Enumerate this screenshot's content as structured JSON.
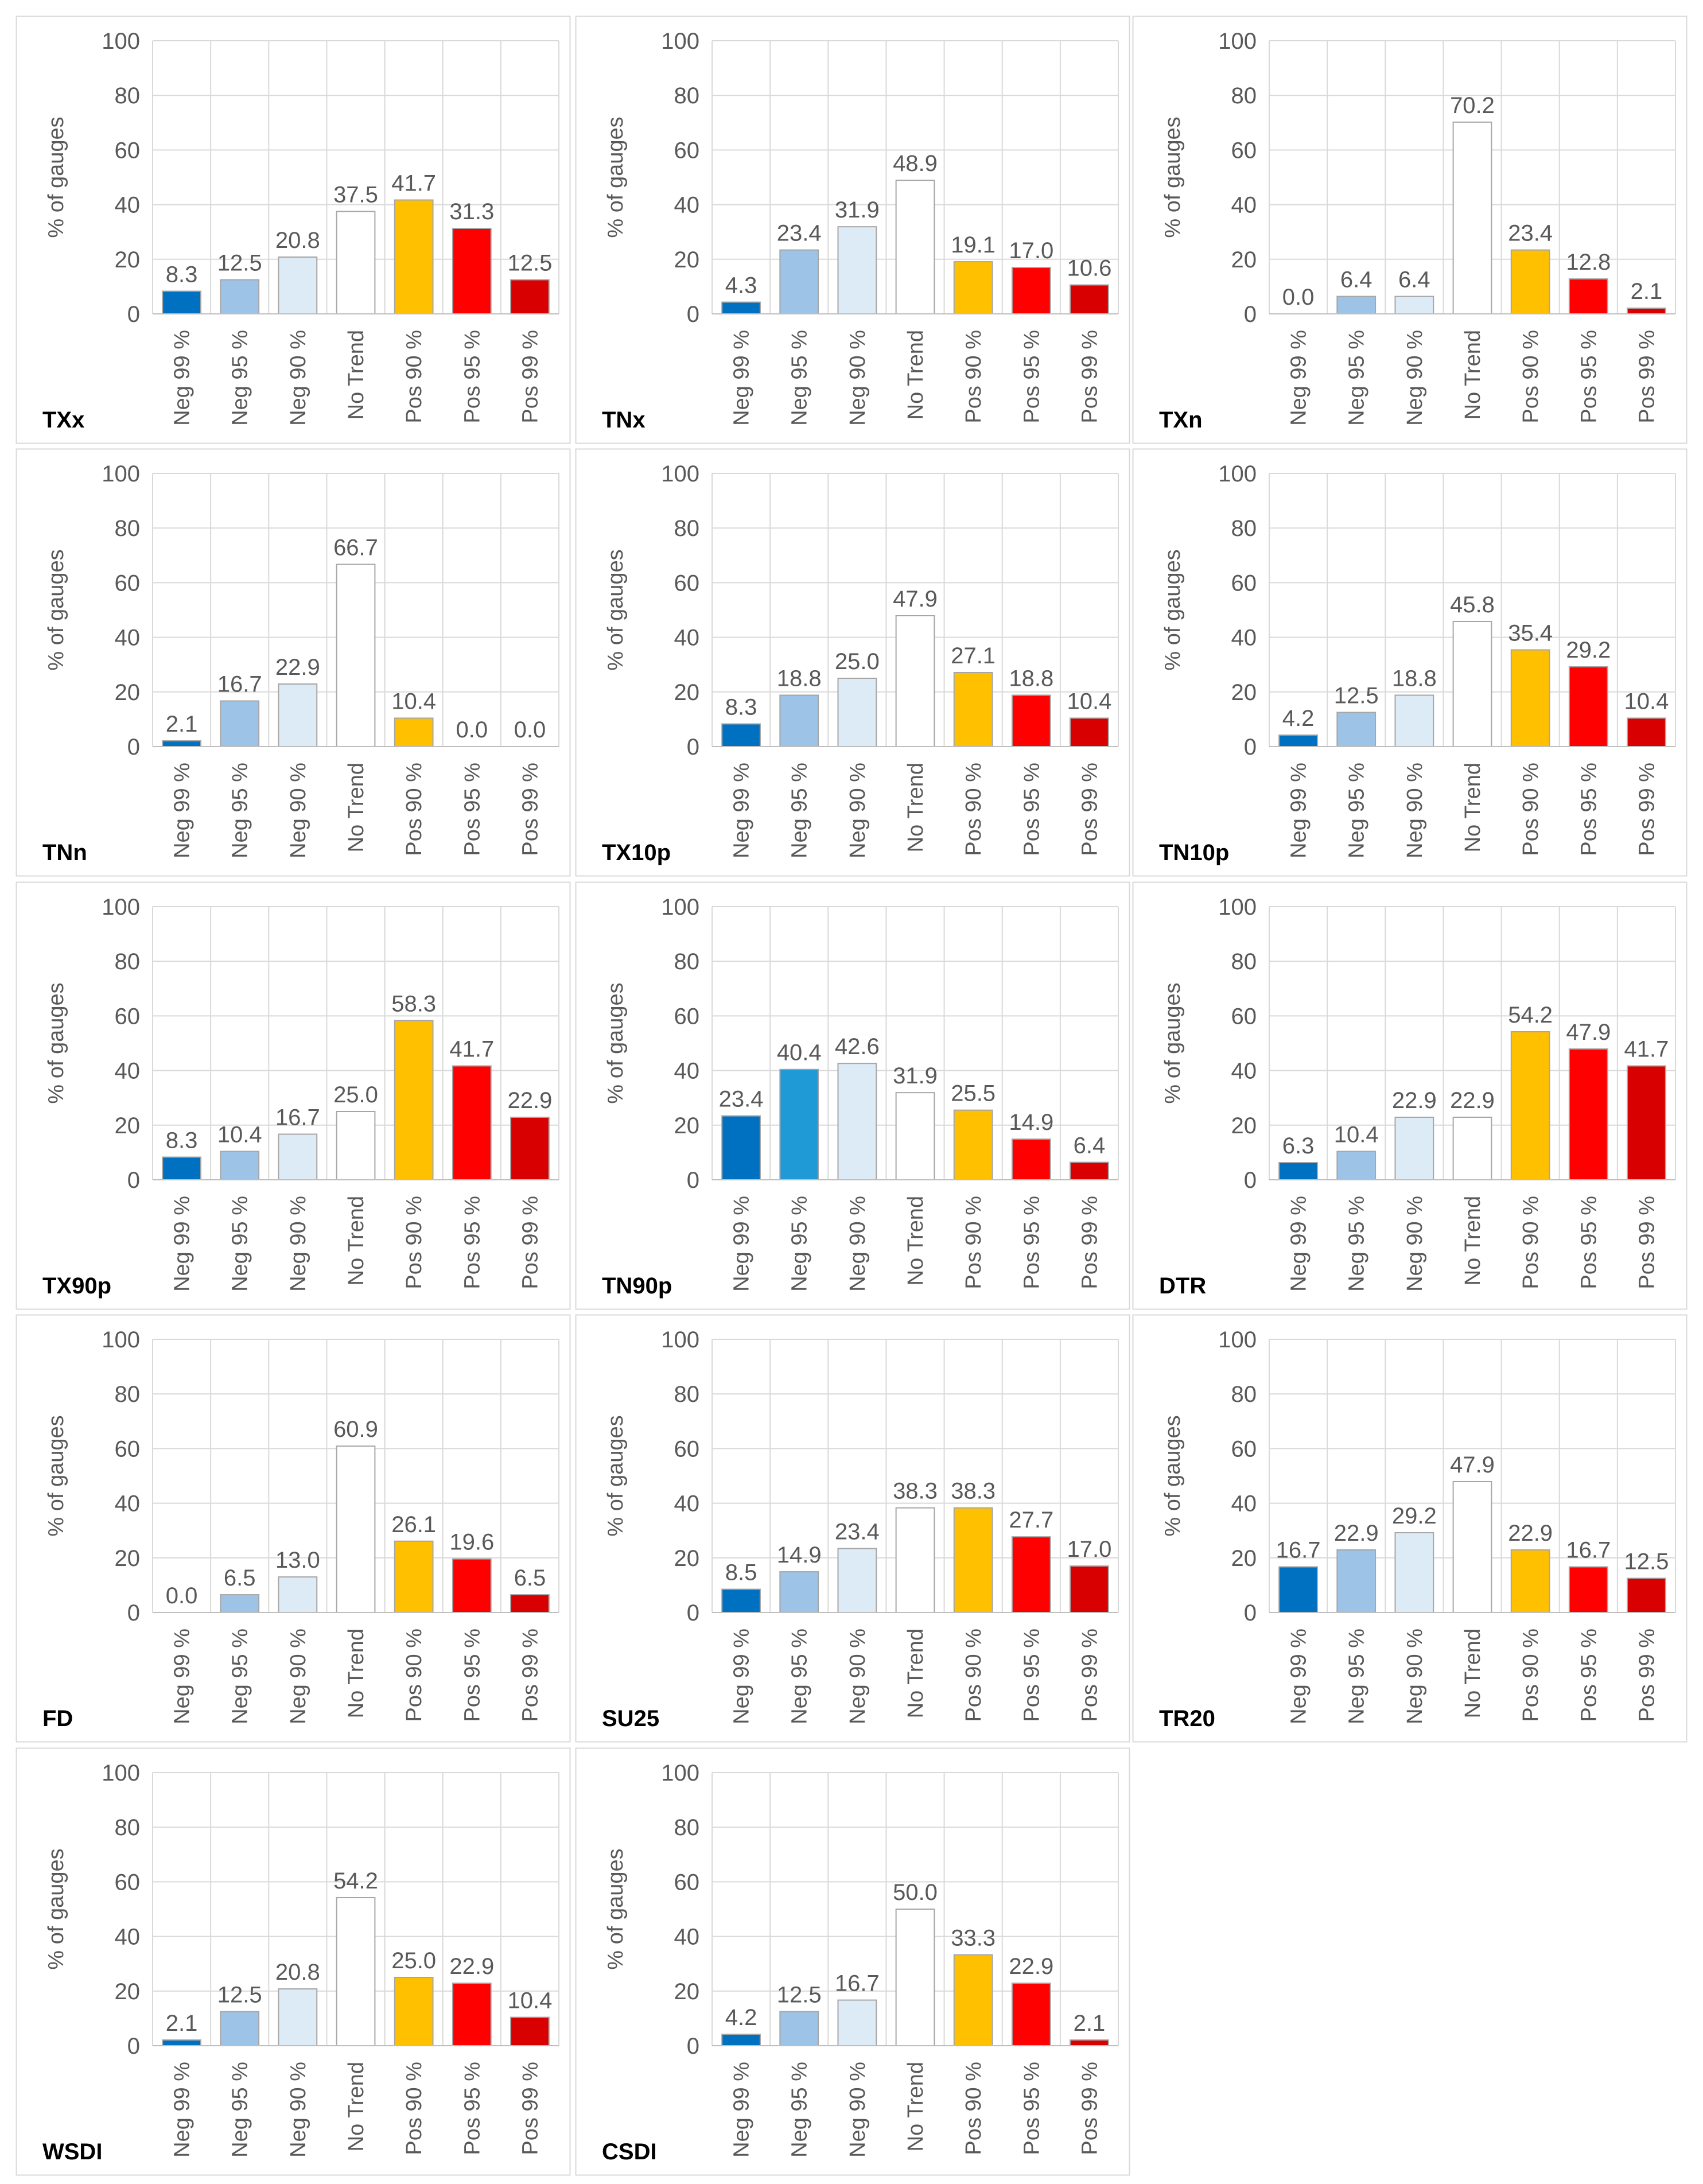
{
  "figure": {
    "category_labels": [
      "Neg 99 %",
      "Neg 95 %",
      "Neg 90 %",
      "No Trend",
      "Pos 90 %",
      "Pos 95 %",
      "Pos 99 %"
    ],
    "colors": {
      "neg99": "#0070C0",
      "neg95": "#9DC3E6",
      "neg95_alt": "#1F9AD6",
      "neg90": "#DDEBF7",
      "none": "#FFFFFF",
      "pos90": "#FFC000",
      "pos95": "#FF0000",
      "pos99": "#D80000",
      "grid": "#D9D9D9",
      "axis_text": "#595959",
      "bar_outline": "#A6A6A6"
    }
  },
  "chart_data": [
    {
      "type": "bar",
      "title": "TXx",
      "ylabel": "% of gauges",
      "ylim": [
        0,
        100
      ],
      "yticks": [
        0,
        20,
        40,
        60,
        80,
        100
      ],
      "categories": [
        "Neg 99 %",
        "Neg 95 %",
        "Neg 90 %",
        "No Trend",
        "Pos 90 %",
        "Pos 95 %",
        "Pos 99 %"
      ],
      "values": [
        8.3,
        12.5,
        20.8,
        37.5,
        41.7,
        31.3,
        12.5
      ],
      "labels": [
        "8.3",
        "12.5",
        "20.8",
        "37.5",
        "41.7",
        "31.3",
        "12.5"
      ]
    },
    {
      "type": "bar",
      "title": "TNx",
      "ylabel": "% of gauges",
      "ylim": [
        0,
        100
      ],
      "yticks": [
        0,
        20,
        40,
        60,
        80,
        100
      ],
      "categories": [
        "Neg 99 %",
        "Neg 95 %",
        "Neg 90 %",
        "No Trend",
        "Pos 90 %",
        "Pos 95 %",
        "Pos 99 %"
      ],
      "values": [
        4.3,
        23.4,
        31.9,
        48.9,
        19.1,
        17.0,
        10.6
      ],
      "labels": [
        "4.3",
        "23.4",
        "31.9",
        "48.9",
        "19.1",
        "17.0",
        "10.6"
      ]
    },
    {
      "type": "bar",
      "title": "TXn",
      "ylabel": "% of gauges",
      "ylim": [
        0,
        100
      ],
      "yticks": [
        0,
        20,
        40,
        60,
        80,
        100
      ],
      "categories": [
        "Neg 99 %",
        "Neg 95 %",
        "Neg 90 %",
        "No Trend",
        "Pos 90 %",
        "Pos 95 %",
        "Pos 99 %"
      ],
      "values": [
        0.0,
        6.4,
        6.4,
        70.2,
        23.4,
        12.8,
        2.1
      ],
      "labels": [
        "0.0",
        "6.4",
        "6.4",
        "70.2",
        "23.4",
        "12.8",
        "2.1"
      ]
    },
    {
      "type": "bar",
      "title": "TNn",
      "ylabel": "% of gauges",
      "ylim": [
        0,
        100
      ],
      "yticks": [
        0,
        20,
        40,
        60,
        80,
        100
      ],
      "categories": [
        "Neg 99 %",
        "Neg 95 %",
        "Neg 90 %",
        "No Trend",
        "Pos 90 %",
        "Pos 95 %",
        "Pos 99 %"
      ],
      "values": [
        2.1,
        16.7,
        22.9,
        66.7,
        10.4,
        0.0,
        0.0
      ],
      "labels": [
        "2.1",
        "16.7",
        "22.9",
        "66.7",
        "10.4",
        "0.0",
        "0.0"
      ]
    },
    {
      "type": "bar",
      "title": "TX10p",
      "ylabel": "% of gauges",
      "ylim": [
        0,
        100
      ],
      "yticks": [
        0,
        20,
        40,
        60,
        80,
        100
      ],
      "categories": [
        "Neg 99 %",
        "Neg 95 %",
        "Neg 90 %",
        "No Trend",
        "Pos 90 %",
        "Pos 95 %",
        "Pos 99 %"
      ],
      "values": [
        8.3,
        18.8,
        25.0,
        47.9,
        27.1,
        18.8,
        10.4
      ],
      "labels": [
        "8.3",
        "18.8",
        "25.0",
        "47.9",
        "27.1",
        "18.8",
        "10.4"
      ]
    },
    {
      "type": "bar",
      "title": "TN10p",
      "ylabel": "% of gauges",
      "ylim": [
        0,
        100
      ],
      "yticks": [
        0,
        20,
        40,
        60,
        80,
        100
      ],
      "categories": [
        "Neg 99 %",
        "Neg 95 %",
        "Neg 90 %",
        "No Trend",
        "Pos 90 %",
        "Pos 95 %",
        "Pos 99 %"
      ],
      "values": [
        4.2,
        12.5,
        18.8,
        45.8,
        35.4,
        29.2,
        10.4
      ],
      "labels": [
        "4.2",
        "12.5",
        "18.8",
        "45.8",
        "35.4",
        "29.2",
        "10.4"
      ]
    },
    {
      "type": "bar",
      "title": "TX90p",
      "ylabel": "% of gauges",
      "ylim": [
        0,
        100
      ],
      "yticks": [
        0,
        20,
        40,
        60,
        80,
        100
      ],
      "categories": [
        "Neg 99 %",
        "Neg 95 %",
        "Neg 90 %",
        "No Trend",
        "Pos 90 %",
        "Pos 95 %",
        "Pos 99 %"
      ],
      "values": [
        8.3,
        10.4,
        16.7,
        25.0,
        58.3,
        41.7,
        22.9
      ],
      "labels": [
        "8.3",
        "10.4",
        "16.7",
        "25.0",
        "58.3",
        "41.7",
        "22.9"
      ]
    },
    {
      "type": "bar",
      "title": "TN90p",
      "ylabel": "% of gauges",
      "ylim": [
        0,
        100
      ],
      "yticks": [
        0,
        20,
        40,
        60,
        80,
        100
      ],
      "categories": [
        "Neg 99 %",
        "Neg 95 %",
        "Neg 90 %",
        "No Trend",
        "Pos 90 %",
        "Pos 95 %",
        "Pos 99 %"
      ],
      "values": [
        23.4,
        40.4,
        42.6,
        31.9,
        25.5,
        14.9,
        6.4
      ],
      "labels": [
        "23.4",
        "40.4",
        "42.6",
        "31.9",
        "25.5",
        "14.9",
        "6.4"
      ],
      "neg95_color": "#1F9AD6"
    },
    {
      "type": "bar",
      "title": "DTR",
      "ylabel": "% of gauges",
      "ylim": [
        0,
        100
      ],
      "yticks": [
        0,
        20,
        40,
        60,
        80,
        100
      ],
      "categories": [
        "Neg 99 %",
        "Neg 95 %",
        "Neg 90 %",
        "No Trend",
        "Pos 90 %",
        "Pos 95 %",
        "Pos 99 %"
      ],
      "values": [
        6.3,
        10.4,
        22.9,
        22.9,
        54.2,
        47.9,
        41.7
      ],
      "labels": [
        "6.3",
        "10.4",
        "22.9",
        "22.9",
        "54.2",
        "47.9",
        "41.7"
      ]
    },
    {
      "type": "bar",
      "title": "FD",
      "ylabel": "% of gauges",
      "ylim": [
        0,
        100
      ],
      "yticks": [
        0,
        20,
        40,
        60,
        80,
        100
      ],
      "categories": [
        "Neg 99 %",
        "Neg 95 %",
        "Neg 90 %",
        "No Trend",
        "Pos 90 %",
        "Pos 95 %",
        "Pos 99 %"
      ],
      "values": [
        0.0,
        6.5,
        13.0,
        60.9,
        26.1,
        19.6,
        6.5
      ],
      "labels": [
        "0.0",
        "6.5",
        "13.0",
        "60.9",
        "26.1",
        "19.6",
        "6.5"
      ]
    },
    {
      "type": "bar",
      "title": "SU25",
      "ylabel": "% of gauges",
      "ylim": [
        0,
        100
      ],
      "yticks": [
        0,
        20,
        40,
        60,
        80,
        100
      ],
      "categories": [
        "Neg 99 %",
        "Neg 95 %",
        "Neg 90 %",
        "No Trend",
        "Pos 90 %",
        "Pos 95 %",
        "Pos 99 %"
      ],
      "values": [
        8.5,
        14.9,
        23.4,
        38.3,
        38.3,
        27.7,
        17.0
      ],
      "labels": [
        "8.5",
        "14.9",
        "23.4",
        "38.3",
        "38.3",
        "27.7",
        "17.0"
      ]
    },
    {
      "type": "bar",
      "title": "TR20",
      "ylabel": "% of gauges",
      "ylim": [
        0,
        100
      ],
      "yticks": [
        0,
        20,
        40,
        60,
        80,
        100
      ],
      "categories": [
        "Neg 99 %",
        "Neg 95 %",
        "Neg 90 %",
        "No Trend",
        "Pos 90 %",
        "Pos 95 %",
        "Pos 99 %"
      ],
      "values": [
        16.7,
        22.9,
        29.2,
        47.9,
        22.9,
        16.7,
        12.5
      ],
      "labels": [
        "16.7",
        "22.9",
        "29.2",
        "47.9",
        "22.9",
        "16.7",
        "12.5"
      ]
    },
    {
      "type": "bar",
      "title": "WSDI",
      "ylabel": "% of gauges",
      "ylim": [
        0,
        100
      ],
      "yticks": [
        0,
        20,
        40,
        60,
        80,
        100
      ],
      "categories": [
        "Neg 99 %",
        "Neg 95 %",
        "Neg 90 %",
        "No Trend",
        "Pos 90 %",
        "Pos 95 %",
        "Pos 99 %"
      ],
      "values": [
        2.1,
        12.5,
        20.8,
        54.2,
        25.0,
        22.9,
        10.4
      ],
      "labels": [
        "2.1",
        "12.5",
        "20.8",
        "54.2",
        "25.0",
        "22.9",
        "10.4"
      ]
    },
    {
      "type": "bar",
      "title": "CSDI",
      "ylabel": "% of gauges",
      "ylim": [
        0,
        100
      ],
      "yticks": [
        0,
        20,
        40,
        60,
        80,
        100
      ],
      "categories": [
        "Neg 99 %",
        "Neg 95 %",
        "Neg 90 %",
        "No Trend",
        "Pos 90 %",
        "Pos 95 %",
        "Pos 99 %"
      ],
      "values": [
        4.2,
        12.5,
        16.7,
        50.0,
        33.3,
        22.9,
        2.1
      ],
      "labels": [
        "4.2",
        "12.5",
        "16.7",
        "50.0",
        "33.3",
        "22.9",
        "2.1"
      ]
    }
  ]
}
